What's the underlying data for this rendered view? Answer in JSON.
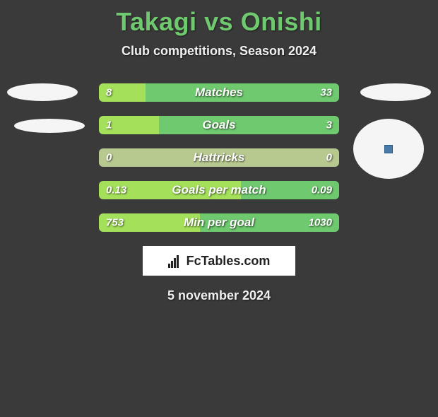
{
  "title": "Takagi vs Onishi",
  "subtitle": "Club competitions, Season 2024",
  "date": "5 november 2024",
  "branding": "FcTables.com",
  "colors": {
    "title": "#6fc96f",
    "text": "#f0f0f0",
    "background": "#3a3a3a",
    "player1_bar": "#a4e05a",
    "player2_bar": "#6fc96f",
    "neutral_bar": "#b8c98f"
  },
  "stats": [
    {
      "label": "Matches",
      "left_value": "8",
      "right_value": "33",
      "left_pct": 19.5,
      "right_pct": 80.5,
      "left_color": "#a4e05a",
      "right_color": "#6fc96f"
    },
    {
      "label": "Goals",
      "left_value": "1",
      "right_value": "3",
      "left_pct": 25,
      "right_pct": 75,
      "left_color": "#a4e05a",
      "right_color": "#6fc96f"
    },
    {
      "label": "Hattricks",
      "left_value": "0",
      "right_value": "0",
      "left_pct": 50,
      "right_pct": 50,
      "left_color": "#b8c98f",
      "right_color": "#b8c98f"
    },
    {
      "label": "Goals per match",
      "left_value": "0.13",
      "right_value": "0.09",
      "left_pct": 59,
      "right_pct": 41,
      "left_color": "#a4e05a",
      "right_color": "#6fc96f"
    },
    {
      "label": "Min per goal",
      "left_value": "753",
      "right_value": "1030",
      "left_pct": 42.2,
      "right_pct": 57.8,
      "left_color": "#a4e05a",
      "right_color": "#6fc96f"
    }
  ]
}
